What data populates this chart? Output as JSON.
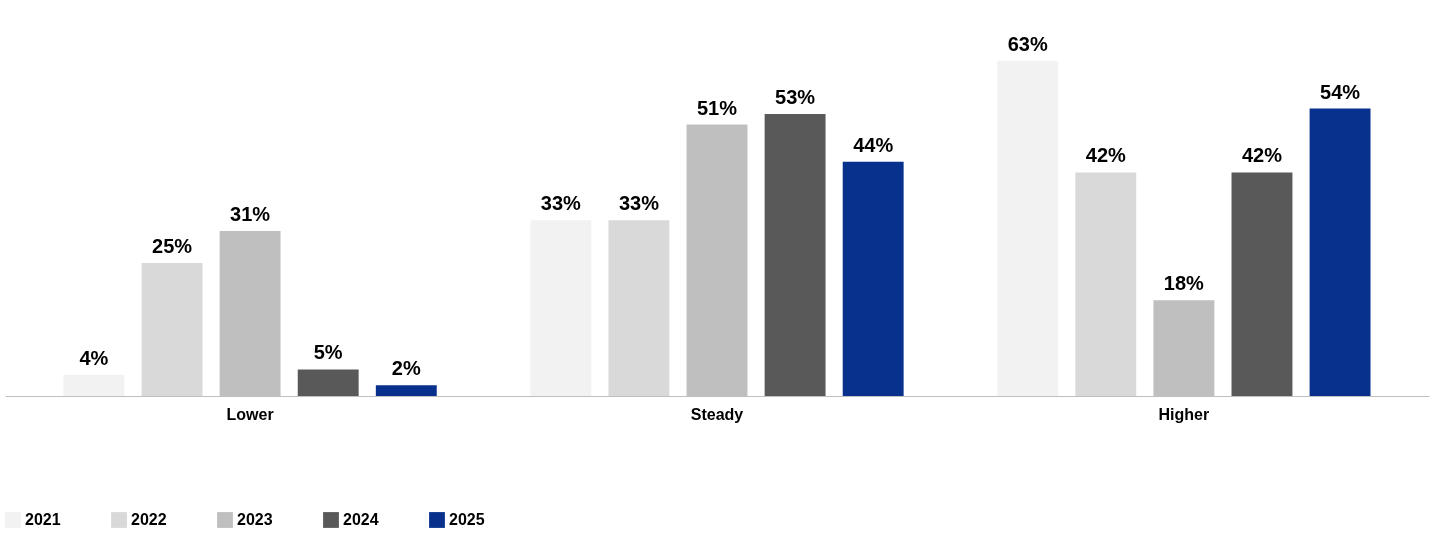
{
  "chart_data": {
    "type": "bar",
    "categories": [
      "Lower",
      "Steady",
      "Higher"
    ],
    "series": [
      {
        "name": "2021",
        "color": "#f2f2f2",
        "values": [
          4,
          33,
          63
        ],
        "value_labels": [
          "4%",
          "33%",
          "63%"
        ]
      },
      {
        "name": "2022",
        "color": "#d9d9d9",
        "values": [
          25,
          33,
          42
        ],
        "value_labels": [
          "25%",
          "33%",
          "42%"
        ]
      },
      {
        "name": "2023",
        "color": "#bfbfbf",
        "values": [
          31,
          51,
          18
        ],
        "value_labels": [
          "31%",
          "51%",
          "18%"
        ]
      },
      {
        "name": "2024",
        "color": "#595959",
        "values": [
          5,
          53,
          42
        ],
        "value_labels": [
          "5%",
          "53%",
          "42%"
        ]
      },
      {
        "name": "2025",
        "color": "#07318c",
        "values": [
          2,
          44,
          54
        ],
        "value_labels": [
          "2%",
          "44%",
          "54%"
        ]
      }
    ],
    "legend": "bottom",
    "grid": false
  }
}
